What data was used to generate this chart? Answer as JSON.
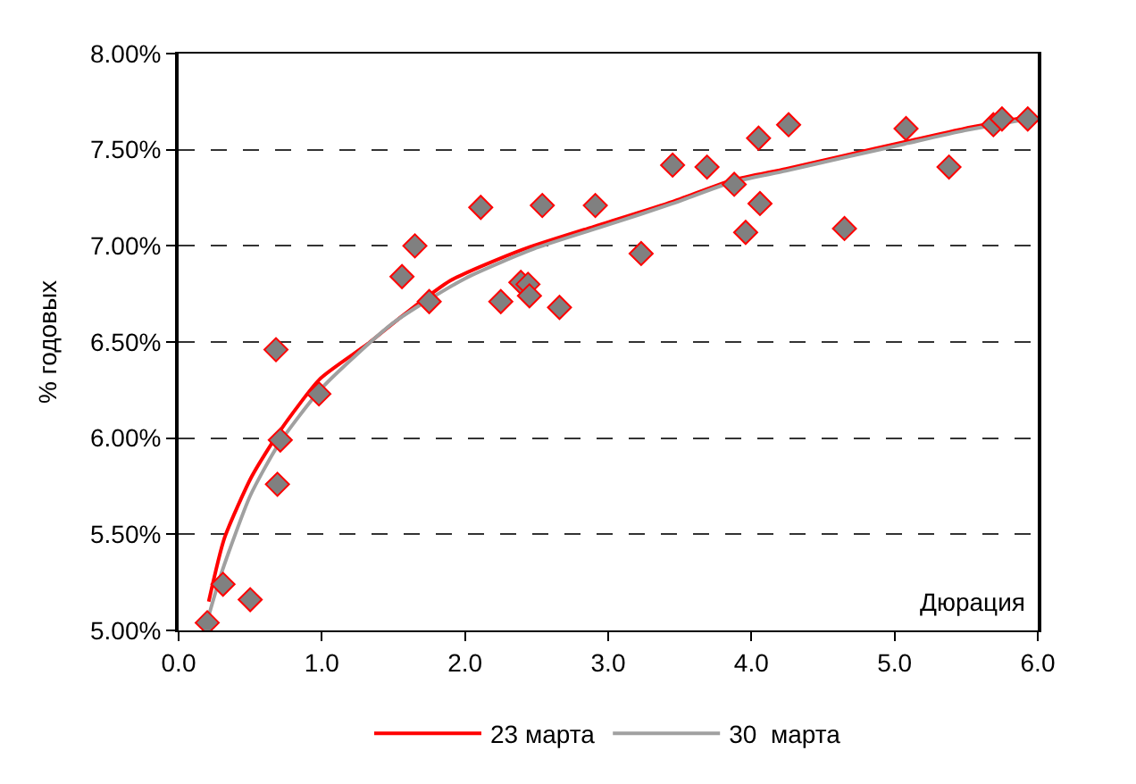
{
  "chart_data": {
    "type": "line",
    "xlabel": "Дюрация",
    "ylabel": "% годовых",
    "xlim": [
      0,
      6
    ],
    "xticks": [
      {
        "value": 0,
        "label": "0.0"
      },
      {
        "value": 1,
        "label": "1.0"
      },
      {
        "value": 2,
        "label": "2.0"
      },
      {
        "value": 3,
        "label": "3.0"
      },
      {
        "value": 4,
        "label": "4.0"
      },
      {
        "value": 5,
        "label": "5.0"
      },
      {
        "value": 6,
        "label": "6.0"
      }
    ],
    "ylim": [
      5,
      8
    ],
    "yticks": [
      {
        "value": 5,
        "label": "5.00%"
      },
      {
        "value": 5.5,
        "label": "5.50%"
      },
      {
        "value": 6,
        "label": "6.00%"
      },
      {
        "value": 6.5,
        "label": "6.50%"
      },
      {
        "value": 7,
        "label": "7.00%"
      },
      {
        "value": 7.5,
        "label": "7.50%"
      },
      {
        "value": 8,
        "label": "8.00%"
      }
    ],
    "grid": "y",
    "legend": "bottom",
    "series": [
      {
        "type": "scatter",
        "marker": "diamond",
        "color": "#808080",
        "x": [
          0.2,
          0.31,
          0.5,
          0.69,
          0.68,
          0.71,
          0.98,
          1.56,
          1.65,
          1.75,
          2.11,
          2.25,
          2.39,
          2.44,
          2.45,
          2.54,
          2.66,
          2.91,
          3.23,
          3.45,
          3.69,
          3.88,
          3.96,
          4.06,
          4.05,
          4.26,
          4.65,
          5.08,
          5.38,
          5.69,
          5.75,
          5.93
        ],
        "values": [
          5.04,
          5.24,
          5.16,
          5.76,
          6.46,
          5.99,
          6.23,
          6.84,
          7.0,
          6.71,
          7.2,
          6.71,
          6.81,
          6.8,
          6.74,
          7.21,
          6.68,
          7.21,
          6.96,
          7.42,
          7.41,
          7.32,
          7.07,
          7.22,
          7.56,
          7.63,
          7.09,
          7.61,
          7.41,
          7.63,
          7.66,
          7.66
        ]
      },
      {
        "name": "23 марта",
        "color": "#ff0000",
        "marker": "none",
        "x": [
          0.21,
          0.32,
          0.51,
          0.71,
          0.99,
          1.32,
          1.57,
          1.9,
          2.4,
          2.9,
          3.45,
          3.86,
          4.24,
          4.65,
          5.07,
          5.49,
          5.93
        ],
        "values": [
          5.15,
          5.48,
          5.8,
          6.04,
          6.31,
          6.49,
          6.64,
          6.82,
          6.98,
          7.1,
          7.23,
          7.34,
          7.4,
          7.47,
          7.54,
          7.61,
          7.67
        ]
      },
      {
        "name": "30  марта",
        "color": "#a0a0a0",
        "marker": "none",
        "x": [
          0.2,
          0.3,
          0.5,
          0.7,
          1.0,
          1.5,
          2.0,
          2.5,
          3.0,
          3.45,
          3.86,
          4.24,
          4.65,
          5.07,
          5.49,
          5.93
        ],
        "values": [
          5.05,
          5.3,
          5.7,
          5.97,
          6.26,
          6.6,
          6.83,
          6.99,
          7.11,
          7.22,
          7.33,
          7.39,
          7.46,
          7.53,
          7.6,
          7.66
        ]
      }
    ]
  }
}
